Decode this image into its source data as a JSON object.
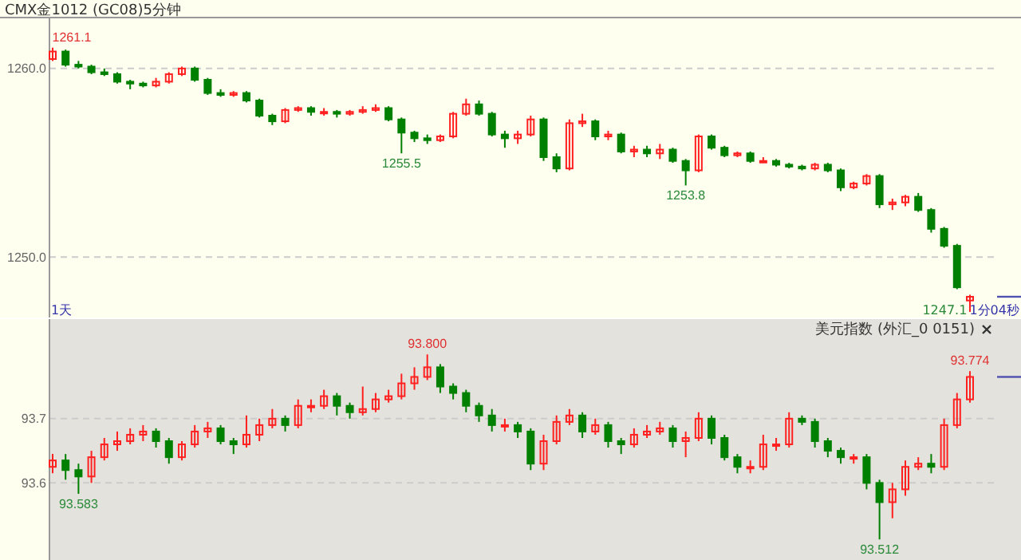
{
  "chart_data": [
    {
      "type": "candlestick",
      "title": "CMX金1012 (GC08)5分钟",
      "categories": [
        null,
        null,
        null,
        null,
        null,
        null,
        null,
        null,
        null,
        null,
        null,
        null,
        null,
        null,
        null,
        null,
        null,
        null,
        null,
        null,
        null,
        null,
        null,
        null,
        null,
        null,
        null,
        null,
        null,
        null,
        null,
        null,
        null,
        null,
        null,
        null,
        null,
        null,
        null,
        null,
        null,
        null,
        null,
        null,
        null,
        null,
        null,
        null,
        null,
        null,
        null,
        null,
        null,
        null,
        null,
        null,
        null,
        null,
        null,
        null,
        null,
        null,
        null,
        null,
        null,
        null,
        null,
        null,
        null,
        null,
        null,
        null
      ],
      "ohlc": [
        [
          1260.5,
          1261.1,
          1260.4,
          1260.9
        ],
        [
          1260.9,
          1261.0,
          1260.1,
          1260.2
        ],
        [
          1260.2,
          1260.4,
          1260.0,
          1260.1
        ],
        [
          1260.1,
          1260.2,
          1259.7,
          1259.8
        ],
        [
          1259.8,
          1260.0,
          1259.6,
          1259.7
        ],
        [
          1259.7,
          1259.8,
          1259.2,
          1259.3
        ],
        [
          1259.3,
          1259.4,
          1258.9,
          1259.2
        ],
        [
          1259.2,
          1259.3,
          1259.0,
          1259.1
        ],
        [
          1259.1,
          1259.5,
          1259.0,
          1259.3
        ],
        [
          1259.3,
          1259.8,
          1259.2,
          1259.7
        ],
        [
          1259.7,
          1260.1,
          1259.6,
          1260.0
        ],
        [
          1260.0,
          1260.1,
          1259.3,
          1259.4
        ],
        [
          1259.4,
          1259.5,
          1258.6,
          1258.7
        ],
        [
          1258.7,
          1258.9,
          1258.5,
          1258.6
        ],
        [
          1258.6,
          1258.8,
          1258.5,
          1258.7
        ],
        [
          1258.7,
          1258.8,
          1258.2,
          1258.3
        ],
        [
          1258.3,
          1258.4,
          1257.4,
          1257.5
        ],
        [
          1257.5,
          1257.6,
          1257.0,
          1257.2
        ],
        [
          1257.2,
          1257.9,
          1257.1,
          1257.8
        ],
        [
          1257.8,
          1258.0,
          1257.7,
          1257.9
        ],
        [
          1257.9,
          1258.0,
          1257.5,
          1257.7
        ],
        [
          1257.7,
          1257.9,
          1257.5,
          1257.7
        ],
        [
          1257.7,
          1257.8,
          1257.4,
          1257.6
        ],
        [
          1257.6,
          1257.8,
          1257.5,
          1257.7
        ],
        [
          1257.7,
          1258.0,
          1257.6,
          1257.8
        ],
        [
          1257.8,
          1258.1,
          1257.7,
          1257.9
        ],
        [
          1257.9,
          1258.0,
          1257.2,
          1257.3
        ],
        [
          1257.3,
          1257.4,
          1255.5,
          1256.6
        ],
        [
          1256.6,
          1256.7,
          1256.1,
          1256.3
        ],
        [
          1256.3,
          1256.5,
          1256.0,
          1256.2
        ],
        [
          1256.2,
          1256.5,
          1256.1,
          1256.4
        ],
        [
          1256.4,
          1257.7,
          1256.3,
          1257.6
        ],
        [
          1257.6,
          1258.4,
          1257.5,
          1258.1
        ],
        [
          1258.1,
          1258.3,
          1257.5,
          1257.6
        ],
        [
          1257.6,
          1257.7,
          1256.4,
          1256.5
        ],
        [
          1256.5,
          1256.7,
          1255.8,
          1256.3
        ],
        [
          1256.3,
          1256.7,
          1256.0,
          1256.5
        ],
        [
          1256.5,
          1257.5,
          1256.4,
          1257.3
        ],
        [
          1257.3,
          1257.4,
          1255.1,
          1255.3
        ],
        [
          1255.3,
          1255.5,
          1254.5,
          1254.7
        ],
        [
          1254.7,
          1257.3,
          1254.6,
          1257.1
        ],
        [
          1257.1,
          1257.6,
          1256.9,
          1257.2
        ],
        [
          1257.2,
          1257.3,
          1256.2,
          1256.4
        ],
        [
          1256.4,
          1256.7,
          1256.2,
          1256.5
        ],
        [
          1256.5,
          1256.6,
          1255.5,
          1255.6
        ],
        [
          1255.6,
          1255.9,
          1255.3,
          1255.7
        ],
        [
          1255.7,
          1255.9,
          1255.3,
          1255.5
        ],
        [
          1255.5,
          1256.0,
          1255.2,
          1255.7
        ],
        [
          1255.7,
          1255.8,
          1255.0,
          1255.1
        ],
        [
          1255.1,
          1255.2,
          1253.8,
          1254.6
        ],
        [
          1254.6,
          1256.5,
          1254.5,
          1256.4
        ],
        [
          1256.4,
          1256.5,
          1255.7,
          1255.8
        ],
        [
          1255.8,
          1255.9,
          1255.3,
          1255.4
        ],
        [
          1255.4,
          1255.6,
          1255.3,
          1255.5
        ],
        [
          1255.5,
          1255.6,
          1255.0,
          1255.1
        ],
        [
          1255.1,
          1255.3,
          1255.0,
          1255.1
        ],
        [
          1255.1,
          1255.2,
          1254.8,
          1254.9
        ],
        [
          1254.9,
          1255.0,
          1254.7,
          1254.8
        ],
        [
          1254.8,
          1254.9,
          1254.6,
          1254.7
        ],
        [
          1254.7,
          1255.0,
          1254.6,
          1254.9
        ],
        [
          1254.9,
          1255.0,
          1254.5,
          1254.6
        ],
        [
          1254.6,
          1254.7,
          1253.5,
          1253.7
        ],
        [
          1253.7,
          1254.0,
          1253.6,
          1253.9
        ],
        [
          1253.9,
          1254.4,
          1253.8,
          1254.3
        ],
        [
          1254.3,
          1254.4,
          1252.6,
          1252.8
        ],
        [
          1252.8,
          1253.1,
          1252.5,
          1252.9
        ],
        [
          1252.9,
          1253.3,
          1252.7,
          1253.2
        ],
        [
          1253.2,
          1253.4,
          1252.4,
          1252.5
        ],
        [
          1252.5,
          1252.6,
          1251.3,
          1251.5
        ],
        [
          1251.5,
          1251.6,
          1250.5,
          1250.6
        ],
        [
          1250.6,
          1250.7,
          1248.3,
          1248.4
        ],
        [
          1247.7,
          1248.0,
          1247.1,
          1247.9
        ]
      ],
      "ylim": [
        1246.8,
        1262.7
      ],
      "yticks": [
        {
          "value": 1250,
          "label": "1250.0"
        },
        {
          "value": 1260,
          "label": "1260.0"
        }
      ],
      "grid": "y",
      "tick_labels": "y",
      "annotations": [
        {
          "text": "1261.1",
          "y": 1261.1
        },
        {
          "text": "1255.5",
          "y": 1255.5
        },
        {
          "text": "1253.8",
          "y": 1253.8
        },
        "1天",
        "1247.1",
        "1分04秒"
      ]
    },
    {
      "type": "candlestick",
      "title": "美元指数 (外汇_0 0151)",
      "categories": [
        null,
        null,
        null,
        null,
        null,
        null,
        null,
        null,
        null,
        null,
        null,
        null,
        null,
        null,
        null,
        null,
        null,
        null,
        null,
        null,
        null,
        null,
        null,
        null,
        null,
        null,
        null,
        null,
        null,
        null,
        null,
        null,
        null,
        null,
        null,
        null,
        null,
        null,
        null,
        null,
        null,
        null,
        null,
        null,
        null,
        null,
        null,
        null,
        null,
        null,
        null,
        null,
        null,
        null,
        null,
        null,
        null,
        null,
        null,
        null,
        null,
        null,
        null,
        null,
        null,
        null,
        null,
        null,
        null,
        null,
        null,
        null
      ],
      "ohlc": [
        [
          93.625,
          93.645,
          93.615,
          93.635
        ],
        [
          93.635,
          93.645,
          93.605,
          93.62
        ],
        [
          93.62,
          93.63,
          93.583,
          93.61
        ],
        [
          93.61,
          93.65,
          93.6,
          93.64
        ],
        [
          93.64,
          93.67,
          93.635,
          93.66
        ],
        [
          93.66,
          93.68,
          93.65,
          93.665
        ],
        [
          93.665,
          93.685,
          93.66,
          93.675
        ],
        [
          93.675,
          93.69,
          93.665,
          93.68
        ],
        [
          93.68,
          93.685,
          93.655,
          93.665
        ],
        [
          93.665,
          93.67,
          93.63,
          93.64
        ],
        [
          93.64,
          93.665,
          93.635,
          93.66
        ],
        [
          93.66,
          93.69,
          93.655,
          93.68
        ],
        [
          93.68,
          93.695,
          93.67,
          93.685
        ],
        [
          93.685,
          93.69,
          93.66,
          93.665
        ],
        [
          93.665,
          93.67,
          93.645,
          93.66
        ],
        [
          93.66,
          93.705,
          93.655,
          93.675
        ],
        [
          93.675,
          93.7,
          93.665,
          93.69
        ],
        [
          93.69,
          93.715,
          93.685,
          93.7
        ],
        [
          93.7,
          93.705,
          93.68,
          93.69
        ],
        [
          93.69,
          93.73,
          93.685,
          93.72
        ],
        [
          93.72,
          93.73,
          93.71,
          93.72
        ],
        [
          93.72,
          93.745,
          93.715,
          93.735
        ],
        [
          93.735,
          93.74,
          93.705,
          93.72
        ],
        [
          93.72,
          93.725,
          93.7,
          93.71
        ],
        [
          93.71,
          93.75,
          93.705,
          93.715
        ],
        [
          93.715,
          93.74,
          93.71,
          93.73
        ],
        [
          93.73,
          93.745,
          93.725,
          93.735
        ],
        [
          93.735,
          93.77,
          93.73,
          93.755
        ],
        [
          93.755,
          93.78,
          93.745,
          93.765
        ],
        [
          93.765,
          93.8,
          93.76,
          93.78
        ],
        [
          93.78,
          93.785,
          93.74,
          93.75
        ],
        [
          93.75,
          93.755,
          93.73,
          93.74
        ],
        [
          93.74,
          93.745,
          93.71,
          93.72
        ],
        [
          93.72,
          93.725,
          93.695,
          93.705
        ],
        [
          93.705,
          93.715,
          93.68,
          93.69
        ],
        [
          93.69,
          93.7,
          93.68,
          93.69
        ],
        [
          93.69,
          93.695,
          93.67,
          93.68
        ],
        [
          93.68,
          93.685,
          93.62,
          93.63
        ],
        [
          93.63,
          93.675,
          93.62,
          93.665
        ],
        [
          93.665,
          93.705,
          93.66,
          93.695
        ],
        [
          93.695,
          93.715,
          93.69,
          93.705
        ],
        [
          93.705,
          93.71,
          93.67,
          93.68
        ],
        [
          93.68,
          93.7,
          93.675,
          93.69
        ],
        [
          93.69,
          93.695,
          93.655,
          93.665
        ],
        [
          93.665,
          93.67,
          93.645,
          93.66
        ],
        [
          93.66,
          93.685,
          93.655,
          93.675
        ],
        [
          93.675,
          93.69,
          93.67,
          93.68
        ],
        [
          93.68,
          93.695,
          93.675,
          93.685
        ],
        [
          93.685,
          93.69,
          93.655,
          93.665
        ],
        [
          93.665,
          93.68,
          93.64,
          93.67
        ],
        [
          93.67,
          93.71,
          93.665,
          93.7
        ],
        [
          93.7,
          93.705,
          93.66,
          93.67
        ],
        [
          93.67,
          93.675,
          93.635,
          93.64
        ],
        [
          93.64,
          93.645,
          93.615,
          93.625
        ],
        [
          93.625,
          93.635,
          93.615,
          93.625
        ],
        [
          93.625,
          93.675,
          93.62,
          93.66
        ],
        [
          93.66,
          93.67,
          93.65,
          93.66
        ],
        [
          93.66,
          93.71,
          93.655,
          93.7
        ],
        [
          93.7,
          93.705,
          93.69,
          93.695
        ],
        [
          93.695,
          93.7,
          93.655,
          93.665
        ],
        [
          93.665,
          93.67,
          93.64,
          93.65
        ],
        [
          93.65,
          93.655,
          93.63,
          93.64
        ],
        [
          93.64,
          93.645,
          93.63,
          93.64
        ],
        [
          93.64,
          93.645,
          93.59,
          93.6
        ],
        [
          93.6,
          93.605,
          93.512,
          93.57
        ],
        [
          93.57,
          93.6,
          93.545,
          93.59
        ],
        [
          93.59,
          93.635,
          93.58,
          93.625
        ],
        [
          93.625,
          93.64,
          93.62,
          93.63
        ],
        [
          93.63,
          93.645,
          93.615,
          93.625
        ],
        [
          93.625,
          93.7,
          93.62,
          93.69
        ],
        [
          93.69,
          93.74,
          93.685,
          93.73
        ],
        [
          93.73,
          93.774,
          93.725,
          93.765
        ]
      ],
      "ylim": [
        93.48,
        93.855
      ],
      "yticks": [
        93.6,
        93.7
      ],
      "grid": "y",
      "tick_labels": "y",
      "annotations": [
        {
          "text": "93.583",
          "y": 93.583
        },
        {
          "text": "93.800",
          "y": 93.8
        },
        {
          "text": "93.512",
          "y": 93.512
        },
        {
          "text": "93.774",
          "y": 93.774
        }
      ]
    }
  ]
}
